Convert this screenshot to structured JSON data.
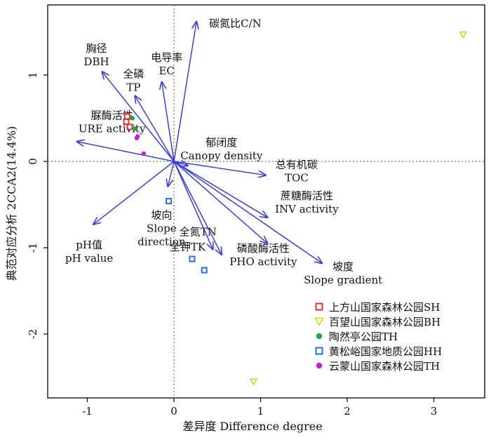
{
  "chart_data": {
    "type": "scatter",
    "subtype": "biplot (CCA ordination)",
    "xlabel": "差异度 Difference degree",
    "ylabel": "典范对应分析 2CCA2(14.4%)",
    "xlim": [
      -1.45,
      3.55
    ],
    "ylim": [
      -2.82,
      1.85
    ],
    "x_ticks": [
      -1,
      0,
      1,
      2,
      3
    ],
    "x_tick_labels": [
      "-1",
      "0",
      "1",
      "2",
      "3"
    ],
    "y_ticks": [
      -2,
      -1,
      0,
      1
    ],
    "y_tick_labels": [
      "-2",
      "-1",
      "0",
      "1"
    ],
    "reference_lines": {
      "x": 0,
      "y": 0,
      "style": "dotted"
    },
    "vectors": [
      {
        "key": "cn",
        "x": 0.26,
        "y": 1.62,
        "label_cn": "碳氮比C/N",
        "label_en": ""
      },
      {
        "key": "dbh",
        "x": -0.83,
        "y": 1.04,
        "label_cn": "胸径",
        "label_en": "DBH"
      },
      {
        "key": "tp",
        "x": -0.45,
        "y": 0.76,
        "label_cn": "全磷",
        "label_en": "TP"
      },
      {
        "key": "ec",
        "x": -0.14,
        "y": 0.92,
        "label_cn": "电导率",
        "label_en": "EC"
      },
      {
        "key": "ure",
        "x": -1.12,
        "y": 0.23,
        "label_cn": "脲酶活性",
        "label_en": "URE activity"
      },
      {
        "key": "canopy",
        "x": 0.16,
        "y": -0.05,
        "label_cn": "郁闭度",
        "label_en": "Canopy density"
      },
      {
        "key": "toc",
        "x": 1.06,
        "y": -0.16,
        "label_cn": "总有机碳",
        "label_en": "TOC"
      },
      {
        "key": "slope_dir",
        "x": -0.07,
        "y": -0.29,
        "label_cn": "坡向",
        "label_en": "Slope direction"
      },
      {
        "key": "inv",
        "x": 1.08,
        "y": -0.65,
        "label_cn": "蔗糖酶活性",
        "label_en": "INV activity"
      },
      {
        "key": "ph",
        "x": -0.93,
        "y": -0.73,
        "label_cn": "pH值",
        "label_en": "pH value"
      },
      {
        "key": "tn",
        "x": 0.45,
        "y": -1.02,
        "label_cn": "全氮TN",
        "label_en": ""
      },
      {
        "key": "tk",
        "x": 0.55,
        "y": -1.08,
        "label_cn": "全钾TK",
        "label_en": ""
      },
      {
        "key": "pho",
        "x": 1.08,
        "y": -0.95,
        "label_cn": "磷酸酶活性",
        "label_en": "PHO activity"
      },
      {
        "key": "slope_grad",
        "x": 1.71,
        "y": -1.18,
        "label_cn": "坡度",
        "label_en": "Slope gradient"
      }
    ],
    "series": [
      {
        "name": "上方山国家森林公园SH",
        "color": "#e0303a",
        "marker": "square-open",
        "points": [
          [
            -0.54,
            0.52
          ],
          [
            -0.55,
            0.46
          ],
          [
            -0.51,
            0.4
          ]
        ]
      },
      {
        "name": "百望山国家森林公园BH",
        "color": "#c8dc1e",
        "marker": "triangle-down-open",
        "points": [
          [
            3.34,
            1.47
          ],
          [
            0.92,
            -2.55
          ]
        ]
      },
      {
        "name": "陶然亭公园TH",
        "color": "#1aa84a",
        "marker": "circle",
        "points": [
          [
            -0.48,
            0.5
          ],
          [
            -0.45,
            0.38
          ]
        ]
      },
      {
        "name": "黄松峪国家地质公园HH",
        "color": "#2a6fe0",
        "marker": "square-open",
        "points": [
          [
            -0.06,
            -0.46
          ],
          [
            0.21,
            -1.13
          ],
          [
            0.35,
            -1.26
          ]
        ]
      },
      {
        "name": "云蒙山国家森林公园TH",
        "color": "#c21fd6",
        "marker": "circle",
        "points": [
          [
            -0.42,
            0.29
          ],
          [
            -0.43,
            0.27
          ],
          [
            -0.35,
            0.09
          ]
        ]
      }
    ],
    "vector_color": "#3b3fd6",
    "legend_position": "bottom-right"
  }
}
